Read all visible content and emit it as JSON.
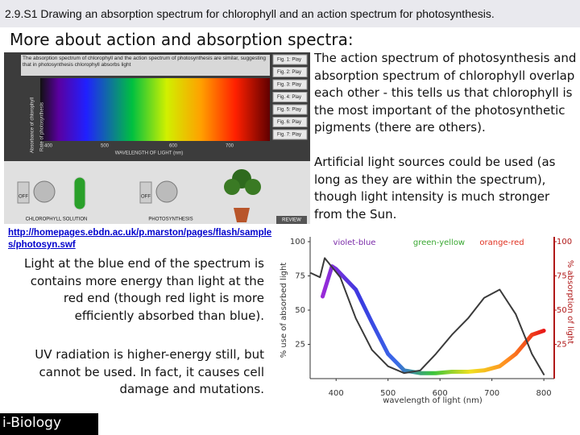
{
  "header": {
    "title": "2.9.S1 Drawing an absorption spectrum for chlorophyll and an action spectrum for photosynthesis."
  },
  "slide": {
    "heading": "More about action and absorption spectra:",
    "right_paragraphs": [
      "The action spectrum of photosynthesis and absorption spectrum of chlorophyll overlap each other - this tells us that chlorophyll is the most important of the photosynthetic pigments (there are others).",
      "Artificial light sources could be used (as long as they are within the spectrum), though light intensity is much stronger from the Sun."
    ],
    "link": "http://homepages.ebdn.ac.uk/p.marston/pages/flash/samples/photosyn.swf",
    "left_paragraphs": [
      "Light at the blue end of the spectrum is contains more energy than light at the red end (though red light is more efficiently absorbed than blue).",
      "UV radiation is higher-energy still, but cannot be used. In fact, it causes cell damage and mutations."
    ],
    "logo": "i-Biology"
  },
  "simulation": {
    "caption": "The absorption spectrum of chlorophyll and the action spectrum of photosynthesis are similar, suggesting that in photosynthesis chlorophyll absorbs light",
    "y_labels": [
      "Absorbance of chlorophyll",
      "Rate of photosynthesis"
    ],
    "x_ticks": [
      "400",
      "500",
      "600",
      "700"
    ],
    "x_label": "WAVELENGTH OF LIGHT (nm)",
    "buttons": [
      "Fig. 1: Play",
      "Fig. 2: Play",
      "Fig. 3: Play",
      "Fig. 4: Play",
      "Fig. 5: Play",
      "Fig. 6: Play",
      "Fig. 7: Play"
    ],
    "switch_labels": [
      "OFF",
      "OFF"
    ],
    "panel_labels": [
      "CHLOROPHYLL SOLUTION",
      "PHOTOSYNTHESIS"
    ],
    "review": "REVIEW"
  },
  "chart": {
    "type": "line",
    "xlabel": "wavelength of light (nm)",
    "ylabel": "% use of absorbed light",
    "y2label": "% absorption of light",
    "annotations": [
      {
        "text": "violet-blue",
        "color": "#7a2aa8"
      },
      {
        "text": "green-yellow",
        "color": "#3aa832"
      },
      {
        "text": "orange-red",
        "color": "#e03020"
      }
    ],
    "xlim": [
      350,
      820
    ],
    "xticks": [
      400,
      500,
      600,
      700,
      800
    ],
    "ylim": [
      0,
      100
    ],
    "yticks": [
      25,
      50,
      75,
      100
    ],
    "y2lim": [
      0,
      100
    ],
    "y2ticks": [
      25,
      50,
      75,
      100
    ],
    "y2color": "#b01818",
    "series": [
      {
        "axis": "y",
        "color": [
          "#9a2ad8",
          "#3a3ae0",
          "#3a6ae8",
          "#3ac43a",
          "#f0e020",
          "#ff8c20",
          "#e81818"
        ],
        "x": [
          374,
          392,
          400,
          438,
          469,
          500,
          531,
          562,
          592,
          623,
          654,
          685,
          715,
          746,
          777,
          800
        ],
        "values": [
          60,
          82,
          80,
          65,
          41,
          18,
          6,
          4,
          4,
          5,
          5,
          6,
          9,
          18,
          32,
          35
        ]
      },
      {
        "axis": "y2",
        "color": "#3a3a3a",
        "x": [
          352,
          369,
          378,
          408,
          438,
          469,
          500,
          531,
          562,
          592,
          623,
          654,
          685,
          715,
          746,
          777,
          800
        ],
        "values": [
          77,
          74,
          88,
          74,
          44,
          21,
          9,
          4,
          6,
          18,
          32,
          44,
          59,
          65,
          47,
          18,
          3
        ]
      }
    ]
  }
}
